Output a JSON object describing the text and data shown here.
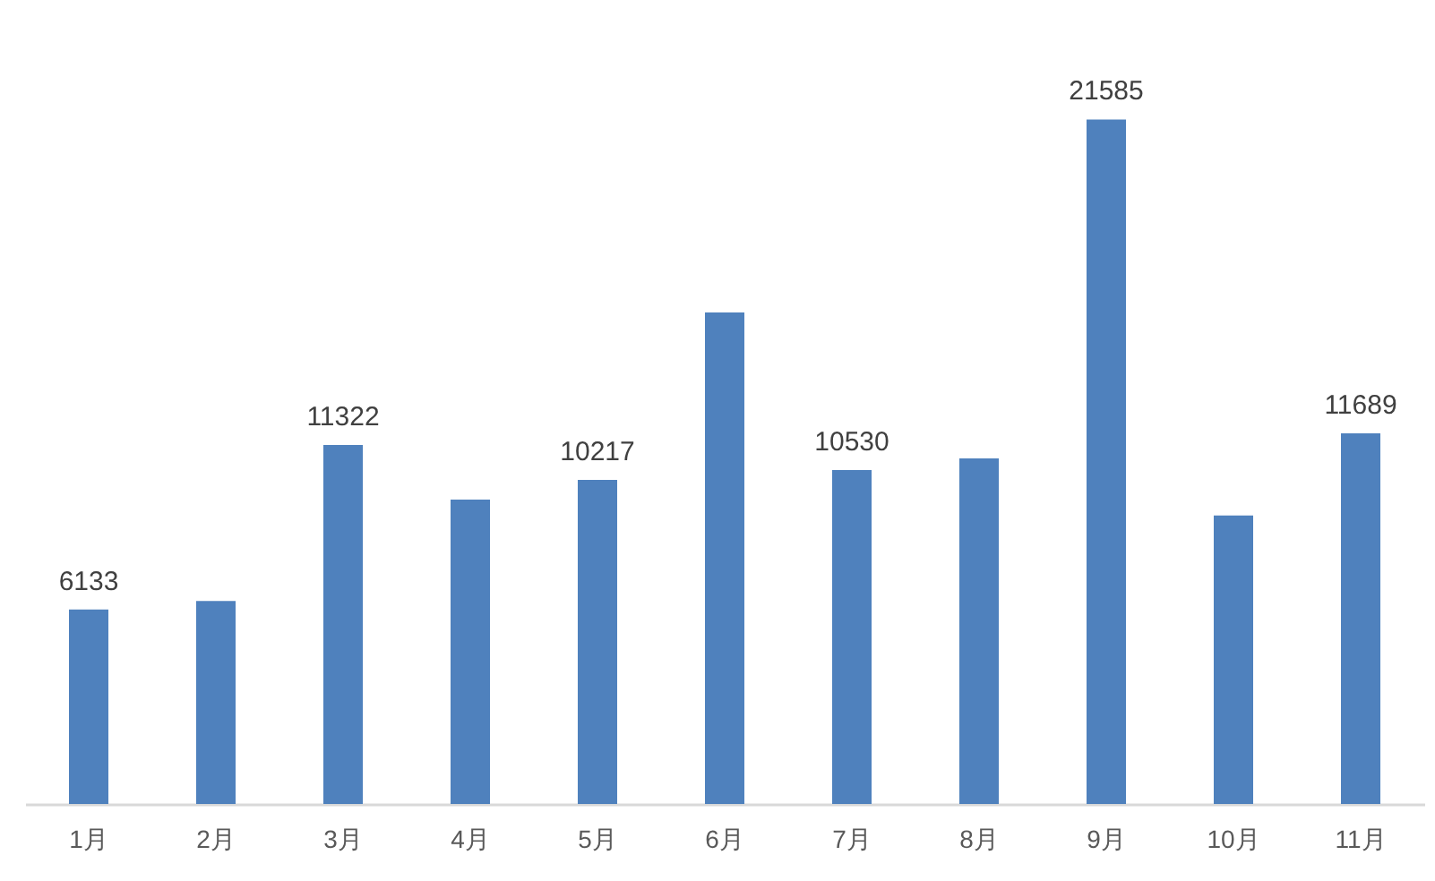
{
  "chart_data": {
    "type": "bar",
    "categories": [
      "1月",
      "2月",
      "3月",
      "4月",
      "5月",
      "6月",
      "7月",
      "8月",
      "9月",
      "10月",
      "11月"
    ],
    "values": [
      6133,
      6400,
      11322,
      9600,
      10217,
      15500,
      10530,
      10900,
      21585,
      9100,
      11689
    ],
    "value_labels": [
      "6133",
      null,
      "11322",
      null,
      "10217",
      null,
      "10530",
      null,
      "21585",
      null,
      "11689"
    ],
    "color": "#4f81bd"
  }
}
